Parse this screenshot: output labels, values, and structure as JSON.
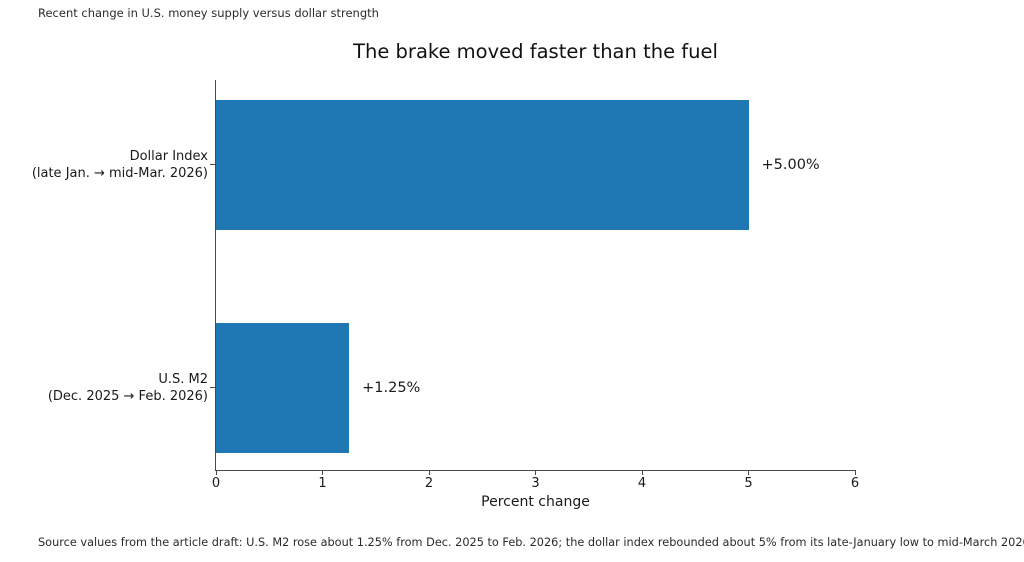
{
  "figure": {
    "subtitle": "Recent change in U.S. money supply versus dollar strength",
    "source_note": "Source values from the article draft: U.S. M2 rose about 1.25% from Dec. 2025 to Feb. 2026; the dollar index rebounded about 5% from its late-January low to mid-March 2026."
  },
  "chart_data": {
    "type": "bar",
    "orientation": "horizontal",
    "title": "The brake moved faster than the fuel",
    "xlabel": "Percent change",
    "xlim": [
      0,
      6
    ],
    "xticks": [
      0,
      1,
      2,
      3,
      4,
      5,
      6
    ],
    "grid": false,
    "legend": "none",
    "bar_color": "#1f77b4",
    "categories": [
      {
        "line1": "Dollar Index",
        "line2": "(late Jan. → mid-Mar. 2026)"
      },
      {
        "line1": "U.S. M2",
        "line2": "(Dec. 2025 → Feb. 2026)"
      }
    ],
    "values": [
      5.0,
      1.25
    ],
    "value_labels": [
      "+5.00%",
      "+1.25%"
    ]
  }
}
